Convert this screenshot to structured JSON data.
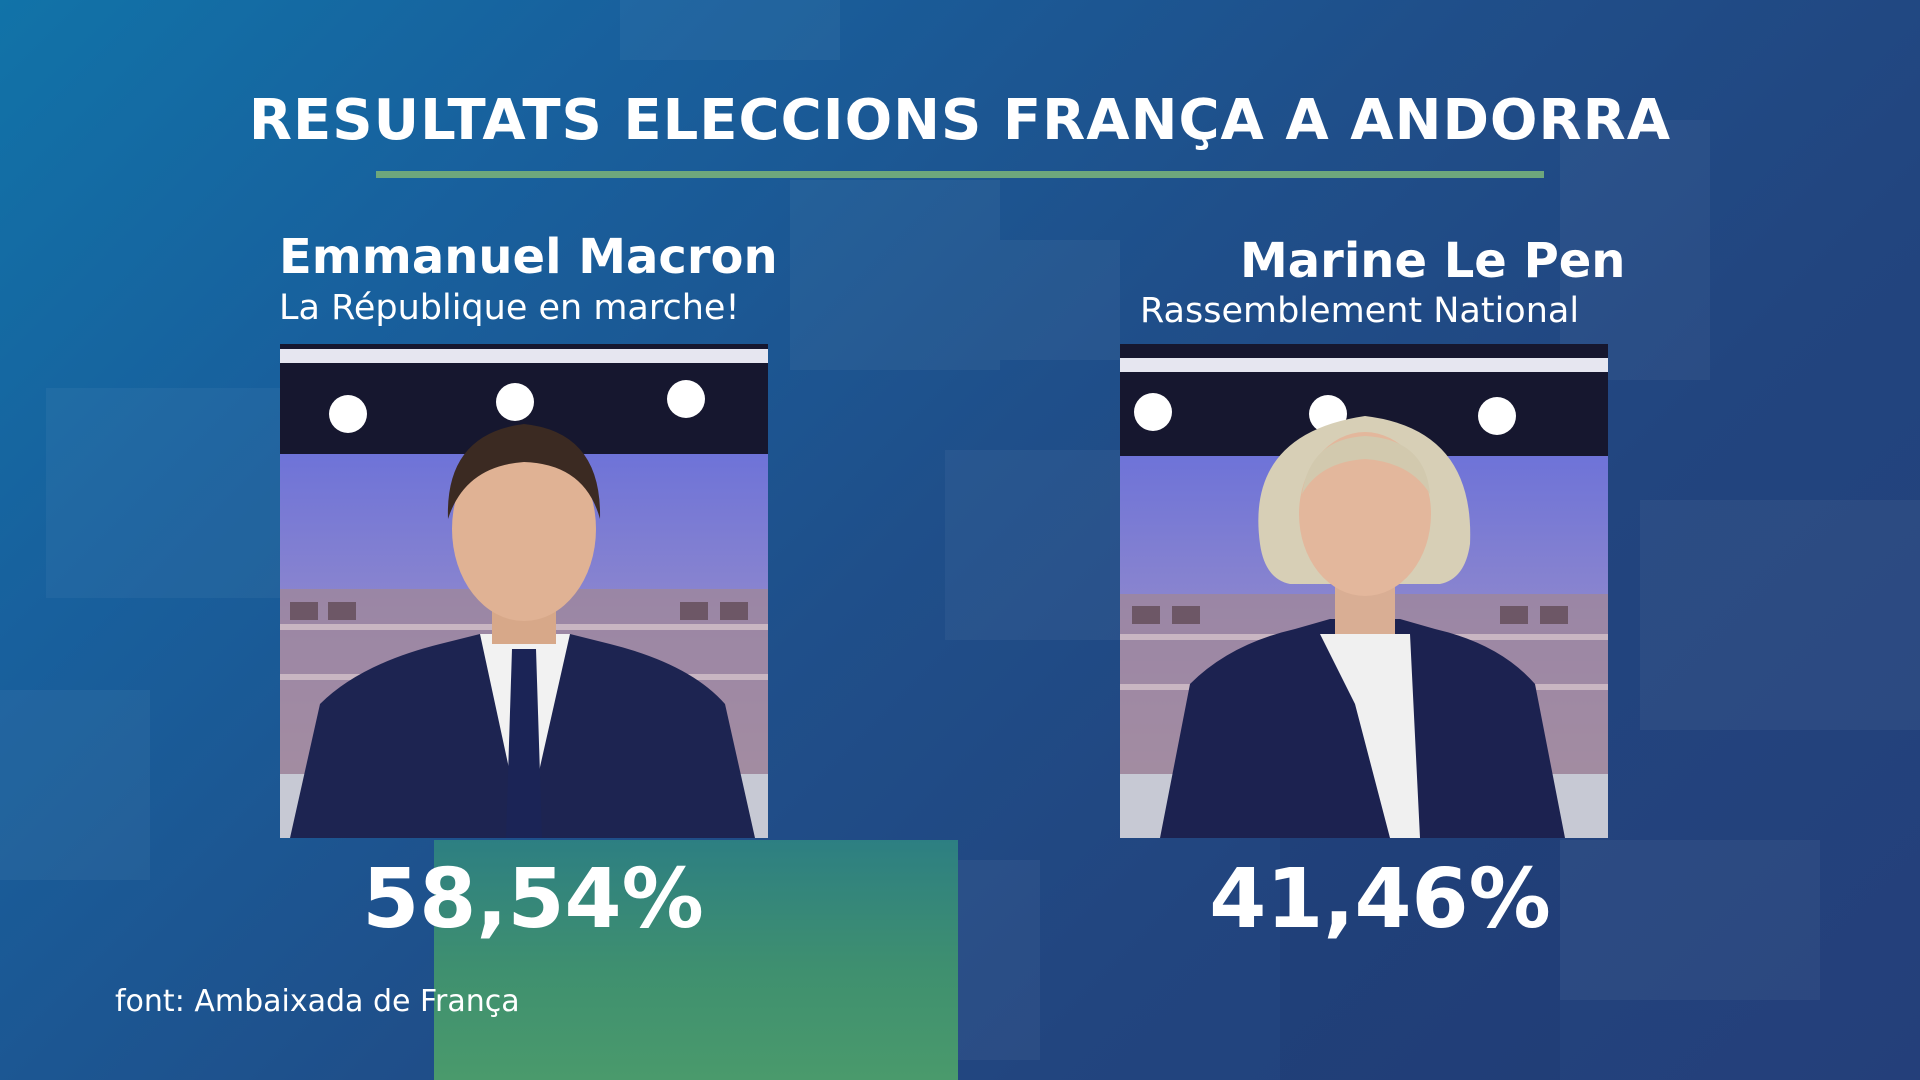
{
  "title": "RESULTATS ELECCIONS FRANÇA A ANDORRA",
  "candidates": [
    {
      "name": "Emmanuel Macron",
      "party": "La République en marche!",
      "percent": "58,54%",
      "photo": "candidate-photo-macron"
    },
    {
      "name": "Marine Le Pen",
      "party": "Rassemblement National",
      "percent": "41,46%",
      "photo": "candidate-photo-le-pen"
    }
  ],
  "source": "font: Ambaixada de França",
  "colors": {
    "accent_rule": "#6ea77c",
    "background": "#1f4f8a",
    "text": "#ffffff",
    "green_block": "#3f906f"
  }
}
